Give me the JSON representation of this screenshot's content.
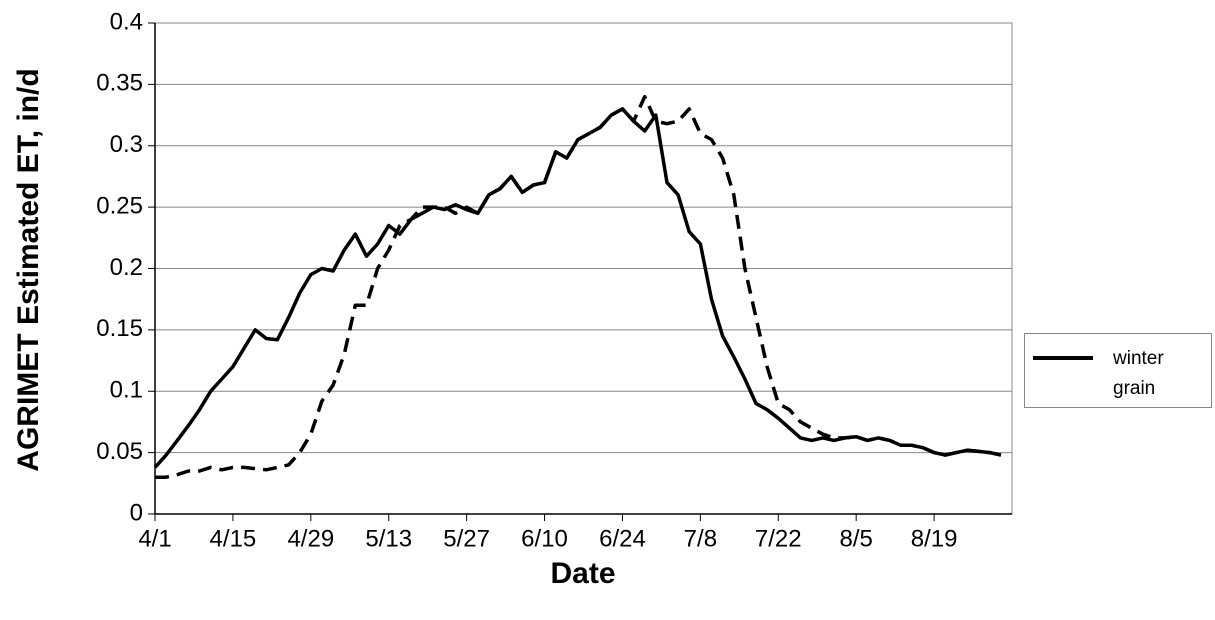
{
  "chart_data": {
    "type": "line",
    "ylabel": "AGRIMET Estimated ET, in/d",
    "xlabel": "Date",
    "categories": [
      "4/1",
      null,
      null,
      null,
      null,
      null,
      null,
      "4/15",
      null,
      null,
      null,
      null,
      null,
      null,
      "4/29",
      null,
      null,
      null,
      null,
      null,
      null,
      "5/13",
      null,
      null,
      null,
      null,
      null,
      null,
      "5/27",
      null,
      null,
      null,
      null,
      null,
      null,
      "6/10",
      null,
      null,
      null,
      null,
      null,
      null,
      "6/24",
      null,
      null,
      null,
      null,
      null,
      null,
      "7/8",
      null,
      null,
      null,
      null,
      null,
      null,
      "7/22",
      null,
      null,
      null,
      null,
      null,
      null,
      "8/5",
      null,
      null,
      null,
      null,
      null,
      null,
      "8/19",
      null,
      null,
      null,
      null,
      null,
      null
    ],
    "series": [
      {
        "name": "winter grain",
        "color": "#000000",
        "dash": false,
        "values": [
          0.038,
          0.048,
          0.06,
          0.072,
          0.085,
          0.1,
          0.11,
          0.12,
          0.135,
          0.15,
          0.143,
          0.142,
          0.16,
          0.18,
          0.195,
          0.2,
          0.198,
          0.215,
          0.228,
          0.21,
          0.22,
          0.235,
          0.228,
          0.24,
          0.245,
          0.25,
          0.248,
          0.252,
          0.248,
          0.245,
          0.26,
          0.265,
          0.275,
          0.262,
          0.268,
          0.27,
          0.295,
          0.29,
          0.305,
          0.31,
          0.315,
          0.325,
          0.33,
          0.32,
          0.312,
          0.325,
          0.27,
          0.26,
          0.23,
          0.22,
          0.175,
          0.145,
          0.128,
          0.11,
          0.09,
          0.085,
          0.078,
          0.07,
          0.062,
          0.06,
          0.062,
          0.06,
          0.062,
          0.063,
          0.06,
          0.062,
          0.06,
          0.056,
          0.056,
          0.054,
          0.05,
          0.048,
          0.05,
          0.052,
          0.051,
          0.05,
          0.048
        ]
      },
      {
        "color": "#000000",
        "dash": true,
        "values": [
          0.03,
          0.03,
          0.032,
          0.035,
          0.035,
          0.038,
          0.036,
          0.038,
          0.038,
          0.037,
          0.036,
          0.038,
          0.04,
          0.05,
          0.065,
          0.092,
          0.105,
          0.13,
          0.17,
          0.17,
          0.2,
          0.215,
          0.235,
          0.24,
          0.25,
          0.25,
          0.25,
          0.245,
          0.25,
          0.245,
          0.26,
          0.265,
          0.275,
          0.262,
          0.268,
          0.27,
          0.295,
          0.29,
          0.305,
          0.31,
          0.315,
          0.325,
          0.33,
          0.32,
          0.34,
          0.32,
          0.318,
          0.32,
          0.33,
          0.31,
          0.305,
          0.29,
          0.26,
          0.2,
          0.16,
          0.12,
          0.09,
          0.085,
          0.075,
          0.07,
          0.065,
          0.062,
          0.062,
          0.063,
          0.06,
          0.062,
          0.06,
          0.056,
          0.056,
          0.054,
          0.05,
          0.048,
          0.05,
          0.052,
          0.051,
          0.05,
          0.048
        ]
      }
    ],
    "ylim": [
      0,
      0.4
    ],
    "yticks": [
      0,
      0.05,
      0.1,
      0.15,
      0.2,
      0.25,
      0.3,
      0.35,
      0.4
    ],
    "grid": true,
    "legend": "right"
  }
}
